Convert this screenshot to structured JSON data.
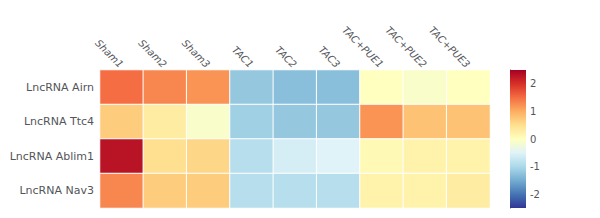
{
  "chart_data": {
    "type": "heatmap",
    "categories": [
      "Sham1",
      "Sham2",
      "Sham3",
      "TAC1",
      "TAC2",
      "TAC3",
      "TAC+PUE1",
      "TAC+PUE2",
      "TAC+PUE3"
    ],
    "rows": [
      "LncRNA Airn",
      "LncRNA Ttc4",
      "LncRNA Ablim1",
      "LncRNA Nav3"
    ],
    "values": [
      [
        1.5,
        1.3,
        1.2,
        -1.2,
        -1.3,
        -1.3,
        0.0,
        -0.1,
        0.0
      ],
      [
        0.7,
        0.3,
        -0.1,
        -1.1,
        -1.2,
        -1.2,
        1.2,
        0.8,
        0.8
      ],
      [
        2.3,
        0.5,
        0.6,
        -0.9,
        -0.6,
        -0.5,
        0.1,
        0.2,
        0.2
      ],
      [
        1.3,
        0.7,
        0.7,
        -0.9,
        -0.9,
        -0.9,
        0.2,
        0.2,
        0.3
      ]
    ],
    "color_range": [
      -2.5,
      2.5
    ],
    "color_ticks": [
      2,
      1,
      0,
      -1,
      -2
    ],
    "color": [
      "#313695",
      "#4575b4",
      "#74add1",
      "#abd9e9",
      "#e0f3f8",
      "#ffffbf",
      "#fee090",
      "#fdae61",
      "#f46d43",
      "#d73027",
      "#a50026"
    ]
  }
}
